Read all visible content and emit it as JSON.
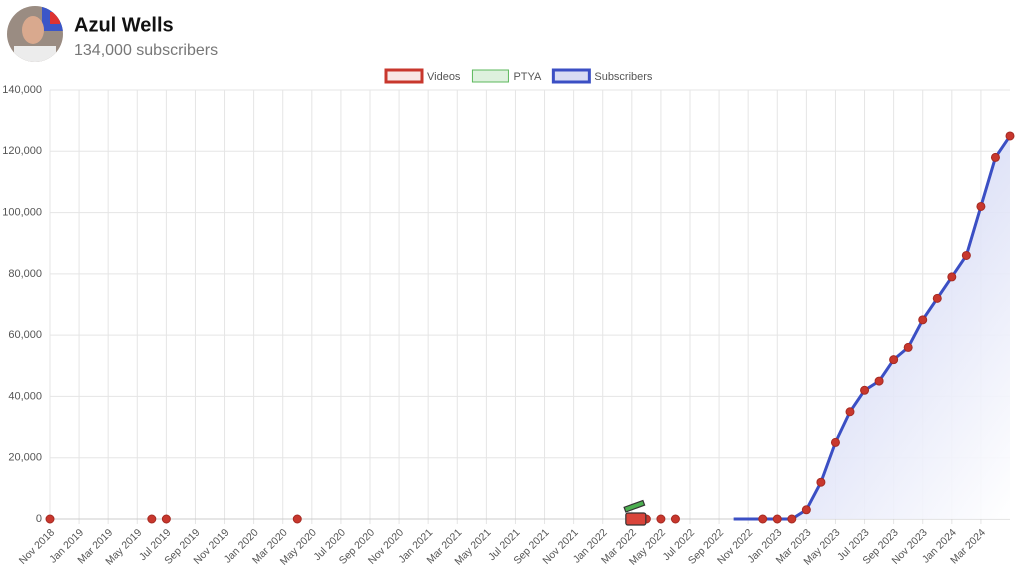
{
  "header": {
    "name": "Azul Wells",
    "subscribers": "134,000 subscribers"
  },
  "chart_data": {
    "type": "line",
    "xlim": [
      "2018-11",
      "2024-05"
    ],
    "xticks": [
      {
        "value": "2018-11",
        "label": "Nov 2018"
      },
      {
        "value": "2019-01",
        "label": "Jan 2019"
      },
      {
        "value": "2019-03",
        "label": "Mar 2019"
      },
      {
        "value": "2019-05",
        "label": "May 2019"
      },
      {
        "value": "2019-07",
        "label": "Jul 2019"
      },
      {
        "value": "2019-09",
        "label": "Sep 2019"
      },
      {
        "value": "2019-11",
        "label": "Nov 2019"
      },
      {
        "value": "2020-01",
        "label": "Jan 2020"
      },
      {
        "value": "2020-03",
        "label": "Mar 2020"
      },
      {
        "value": "2020-05",
        "label": "May 2020"
      },
      {
        "value": "2020-07",
        "label": "Jul 2020"
      },
      {
        "value": "2020-09",
        "label": "Sep 2020"
      },
      {
        "value": "2020-11",
        "label": "Nov 2020"
      },
      {
        "value": "2021-01",
        "label": "Jan 2021"
      },
      {
        "value": "2021-03",
        "label": "Mar 2021"
      },
      {
        "value": "2021-05",
        "label": "May 2021"
      },
      {
        "value": "2021-07",
        "label": "Jul 2021"
      },
      {
        "value": "2021-09",
        "label": "Sep 2021"
      },
      {
        "value": "2021-11",
        "label": "Nov 2021"
      },
      {
        "value": "2022-01",
        "label": "Jan 2022"
      },
      {
        "value": "2022-03",
        "label": "Mar 2022"
      },
      {
        "value": "2022-05",
        "label": "May 2022"
      },
      {
        "value": "2022-07",
        "label": "Jul 2022"
      },
      {
        "value": "2022-09",
        "label": "Sep 2022"
      },
      {
        "value": "2022-11",
        "label": "Nov 2022"
      },
      {
        "value": "2023-01",
        "label": "Jan 2023"
      },
      {
        "value": "2023-03",
        "label": "Mar 2023"
      },
      {
        "value": "2023-05",
        "label": "May 2023"
      },
      {
        "value": "2023-07",
        "label": "Jul 2023"
      },
      {
        "value": "2023-09",
        "label": "Sep 2023"
      },
      {
        "value": "2023-11",
        "label": "Nov 2023"
      },
      {
        "value": "2024-01",
        "label": "Jan 2024"
      },
      {
        "value": "2024-03",
        "label": "Mar 2024"
      }
    ],
    "ylim": [
      0,
      140000
    ],
    "yticks": [
      {
        "value": 0,
        "label": "0"
      },
      {
        "value": 20000,
        "label": "20,000"
      },
      {
        "value": 40000,
        "label": "40,000"
      },
      {
        "value": 60000,
        "label": "60,000"
      },
      {
        "value": 80000,
        "label": "80,000"
      },
      {
        "value": 100000,
        "label": "100,000"
      },
      {
        "value": 120000,
        "label": "120,000"
      },
      {
        "value": 140000,
        "label": "140,000"
      }
    ],
    "grid": true,
    "legend": "top",
    "series": [
      {
        "name": "Videos",
        "color": "#c8372d",
        "style": "points",
        "x": [
          "2018-11",
          "2019-06",
          "2019-07",
          "2020-04",
          "2022-03",
          "2022-04",
          "2022-05",
          "2022-06",
          "2022-12",
          "2023-01",
          "2023-02",
          "2023-03",
          "2023-04",
          "2023-05",
          "2023-06",
          "2023-07",
          "2023-08",
          "2023-09",
          "2023-10",
          "2023-11",
          "2023-12",
          "2024-01",
          "2024-02",
          "2024-03",
          "2024-04",
          "2024-05"
        ],
        "values": [
          0,
          0,
          0,
          0,
          0,
          0,
          0,
          0,
          0,
          0,
          0,
          3000,
          12000,
          25000,
          35000,
          42000,
          45000,
          52000,
          56000,
          65000,
          72000,
          79000,
          86000,
          102000,
          118000,
          125000
        ]
      },
      {
        "name": "PTYA",
        "color": "#5cb85c",
        "style": "line",
        "x": [],
        "values": []
      },
      {
        "name": "Subscribers",
        "color": "#3b4fc4",
        "style": "area",
        "x": [
          "2022-10",
          "2022-11",
          "2022-12",
          "2023-01",
          "2023-02",
          "2023-03",
          "2023-04",
          "2023-05",
          "2023-06",
          "2023-07",
          "2023-08",
          "2023-09",
          "2023-10",
          "2023-11",
          "2023-12",
          "2024-01",
          "2024-02",
          "2024-03",
          "2024-04",
          "2024-05"
        ],
        "values": [
          0,
          0,
          0,
          0,
          0,
          3000,
          12000,
          25000,
          35000,
          42000,
          45000,
          52000,
          56000,
          65000,
          72000,
          79000,
          86000,
          102000,
          118000,
          125000
        ]
      }
    ]
  }
}
